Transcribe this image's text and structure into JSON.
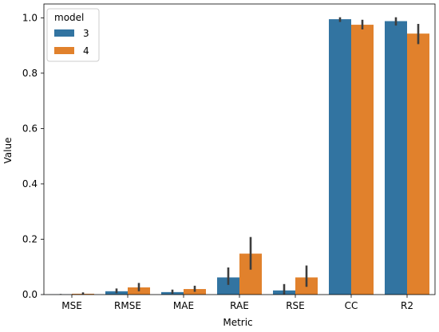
{
  "chart_data": {
    "type": "bar",
    "xlabel": "Metric",
    "ylabel": "Value",
    "ylim": [
      0,
      1.05
    ],
    "yticks": [
      "0.0",
      "0.2",
      "0.4",
      "0.6",
      "0.8",
      "1.0"
    ],
    "categories": [
      "MSE",
      "RMSE",
      "MAE",
      "RAE",
      "RSE",
      "CC",
      "R2"
    ],
    "legend": {
      "title": "model",
      "placement": "top-left"
    },
    "grid": false,
    "series": [
      {
        "name": "3",
        "color": "#3274a1",
        "values": [
          0.0005,
          0.012,
          0.009,
          0.062,
          0.015,
          0.995,
          0.988
        ],
        "error_low": [
          0.0,
          0.005,
          0.003,
          0.035,
          0.0,
          0.985,
          0.972
        ],
        "error_high": [
          0.002,
          0.022,
          0.018,
          0.098,
          0.038,
          1.002,
          1.002
        ]
      },
      {
        "name": "4",
        "color": "#e1812c",
        "values": [
          0.003,
          0.026,
          0.02,
          0.148,
          0.062,
          0.975,
          0.943
        ],
        "error_low": [
          0.0,
          0.012,
          0.01,
          0.09,
          0.028,
          0.958,
          0.905
        ],
        "error_high": [
          0.008,
          0.042,
          0.032,
          0.208,
          0.105,
          0.993,
          0.978
        ]
      }
    ]
  }
}
